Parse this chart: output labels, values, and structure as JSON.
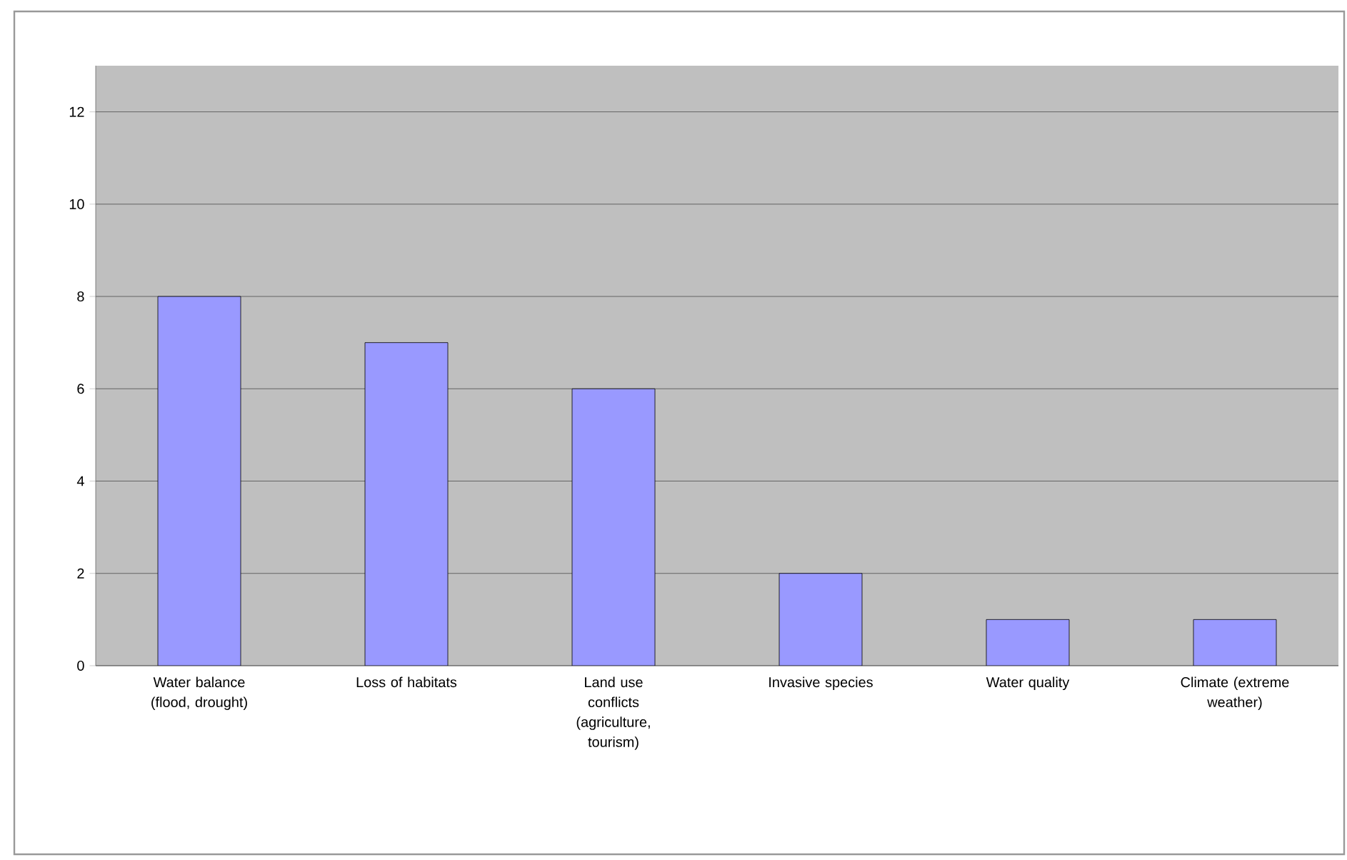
{
  "chart_data": {
    "type": "bar",
    "categories": [
      "Water balance (flood, drought)",
      "Loss of habitats",
      "Land use conflicts (agriculture, tourism)",
      "Invasive species",
      "Water quality",
      "Climate (extreme weather)"
    ],
    "values": [
      8,
      7,
      6,
      2,
      1,
      1
    ],
    "color": "#9999ff",
    "ylim": [
      0,
      13
    ],
    "yticks": [
      0,
      2,
      4,
      6,
      8,
      10,
      12
    ],
    "grid": "y"
  }
}
